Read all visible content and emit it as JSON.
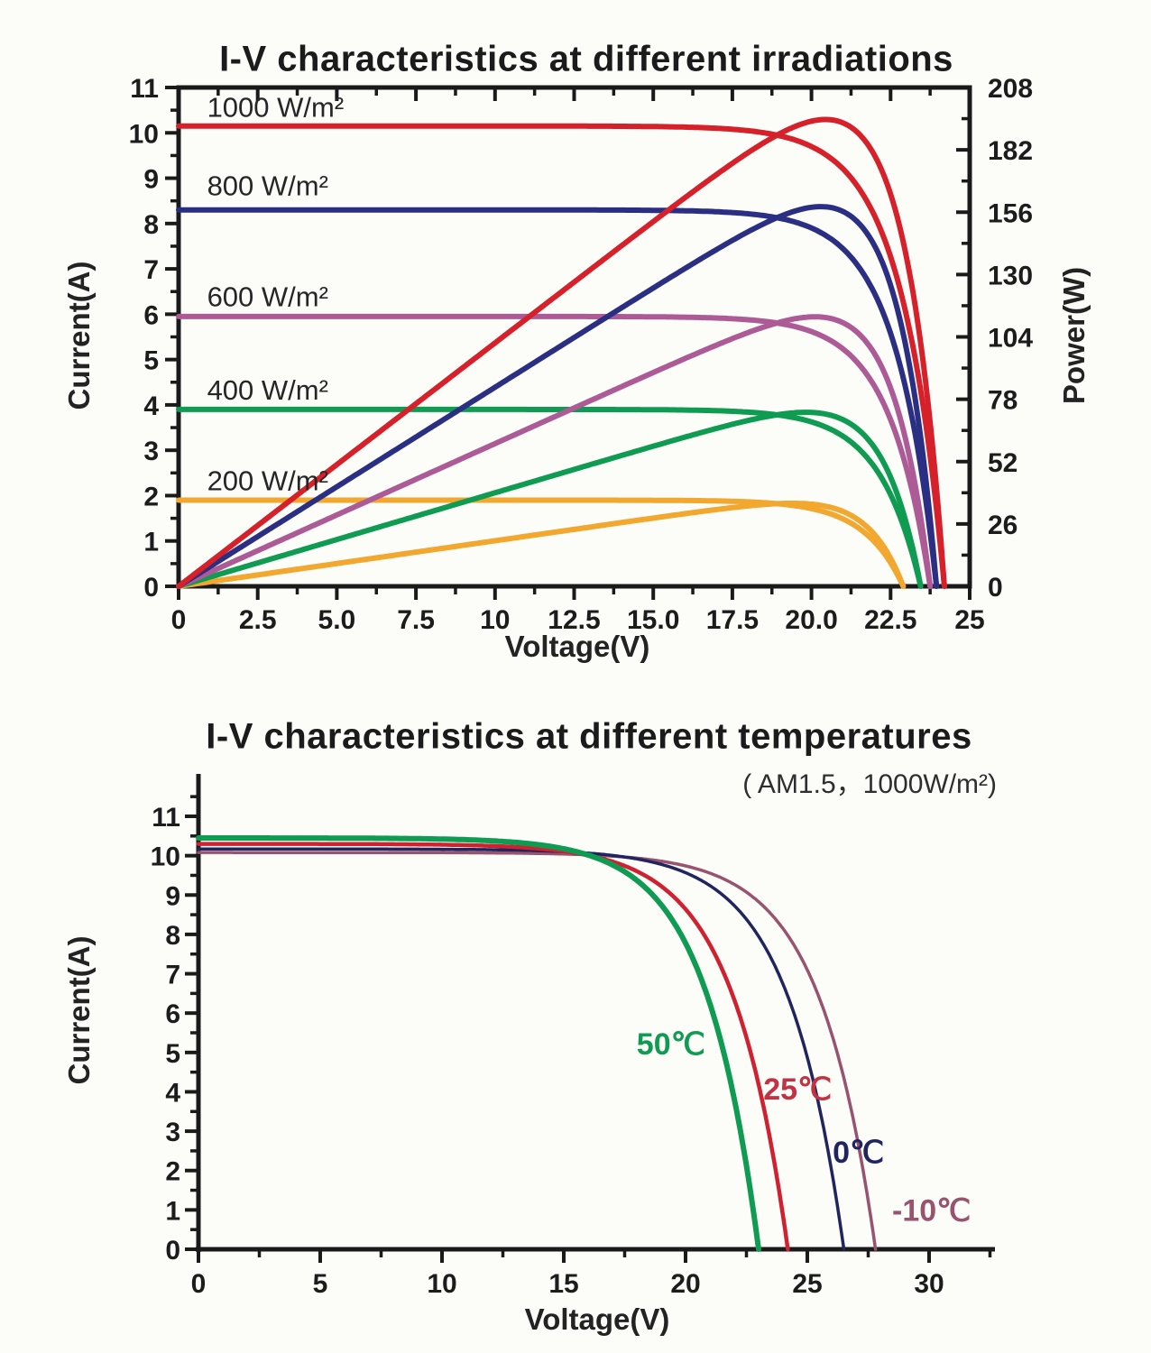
{
  "chart_data": [
    {
      "type": "line",
      "title": "I-V characteristics at different irradiations",
      "xlabel": "Voltage(V)",
      "ylabel_left": "Current(A)",
      "ylabel_right": "Power(W)",
      "xlim": [
        0,
        25
      ],
      "ylim_left": [
        0,
        11
      ],
      "ylim_right": [
        0,
        208
      ],
      "x_tick_values": [
        0,
        2.5,
        5,
        7.5,
        10,
        12.5,
        15,
        17.5,
        20,
        22.5,
        25
      ],
      "x_tick_labels": [
        "0",
        "2.5",
        "5.0",
        "7.5",
        "10",
        "12.5",
        "15.0",
        "17.5",
        "20.0",
        "22.5",
        "25"
      ],
      "x_minor_step": 1.25,
      "y_tick_values": [
        0,
        1,
        2,
        3,
        4,
        5,
        6,
        7,
        8,
        9,
        10,
        11
      ],
      "y_tick_labels": [
        "0",
        "1",
        "2",
        "3",
        "4",
        "5",
        "6",
        "7",
        "8",
        "9",
        "10",
        "11"
      ],
      "y_minor_step": 0.5,
      "y2_tick_values": [
        0,
        26,
        52,
        78,
        104,
        130,
        156,
        182,
        208
      ],
      "y2_tick_labels": [
        "0",
        "26",
        "52",
        "78",
        "104",
        "130",
        "156",
        "182",
        "208"
      ],
      "y2_minor_step": 13,
      "grid": false,
      "legend": "inline curve labels",
      "show_power_curves": true,
      "series": [
        {
          "name": "1000 W/m²",
          "color": "#d6212b",
          "isc_A": 10.15,
          "voc_V": 24.2,
          "knee_a": 1.35,
          "width": 6,
          "label": "1000 W/m²",
          "label_pos": [
            0.9,
            10.35
          ]
        },
        {
          "name": "800 W/m²",
          "color": "#2b2f84",
          "isc_A": 8.3,
          "voc_V": 23.95,
          "knee_a": 1.3,
          "width": 6,
          "label": "800 W/m²",
          "label_pos": [
            0.9,
            8.62
          ]
        },
        {
          "name": "600 W/m²",
          "color": "#ad5b97",
          "isc_A": 5.95,
          "voc_V": 23.75,
          "knee_a": 1.3,
          "width": 6,
          "label": "600 W/m²",
          "label_pos": [
            0.9,
            6.18
          ]
        },
        {
          "name": "400 W/m²",
          "color": "#0f9b52",
          "isc_A": 3.9,
          "voc_V": 23.45,
          "knee_a": 1.3,
          "width": 6,
          "label": "400 W/m²",
          "label_pos": [
            0.9,
            4.12
          ]
        },
        {
          "name": "200 W/m²",
          "color": "#f2a72e",
          "isc_A": 1.9,
          "voc_V": 22.9,
          "knee_a": 1.25,
          "width": 6,
          "label": "200 W/m²",
          "label_pos": [
            0.9,
            2.12
          ]
        }
      ]
    },
    {
      "type": "line",
      "title": "I-V characteristics at different temperatures",
      "subtitle": "( AM1.5，1000W/m²)",
      "xlabel": "Voltage(V)",
      "ylabel_left": "Current(A)",
      "xlim": [
        0,
        30
      ],
      "ylim_left": [
        0,
        11
      ],
      "x_tick_values": [
        0,
        5,
        10,
        15,
        20,
        25,
        30
      ],
      "x_tick_labels": [
        "0",
        "5",
        "10",
        "15",
        "20",
        "25",
        "30"
      ],
      "x_minor_step": 2.5,
      "x_minor_max": 32.5,
      "y_tick_values": [
        0,
        1,
        2,
        3,
        4,
        5,
        6,
        7,
        8,
        9,
        10,
        11
      ],
      "y_tick_labels": [
        "0",
        "1",
        "2",
        "3",
        "4",
        "5",
        "6",
        "7",
        "8",
        "9",
        "10",
        "11"
      ],
      "y_minor_step": 0.5,
      "y_minor_max": 11.5,
      "grid": false,
      "legend": "inline curve labels",
      "show_power_curves": false,
      "series": [
        {
          "name": "50℃",
          "color": "#0f9b52",
          "isc_A": 10.45,
          "voc_V": 23.0,
          "knee_a": 2.2,
          "width": 6,
          "label": "50℃",
          "label_pos": [
            19.4,
            4.95
          ]
        },
        {
          "name": "25℃",
          "color": "#cf2130",
          "isc_A": 10.3,
          "voc_V": 24.2,
          "knee_a": 2.3,
          "width": 4.5,
          "label": "25℃",
          "label_pos": [
            24.6,
            3.8
          ],
          "label_color": "#c23242"
        },
        {
          "name": "0℃",
          "color": "#20255f",
          "isc_A": 10.17,
          "voc_V": 26.5,
          "knee_a": 2.3,
          "width": 3.5,
          "label": "0℃",
          "label_pos": [
            27.1,
            2.2
          ]
        },
        {
          "name": "-10℃",
          "color": "#98536e",
          "isc_A": 10.08,
          "voc_V": 27.8,
          "knee_a": 2.3,
          "width": 3.5,
          "label": "-10℃",
          "label_pos": [
            30.1,
            0.72
          ]
        }
      ]
    }
  ],
  "colors": {
    "axis": "#1a1a1a",
    "tick_label": "#1c1c1c",
    "background": "#fcfcf9"
  }
}
